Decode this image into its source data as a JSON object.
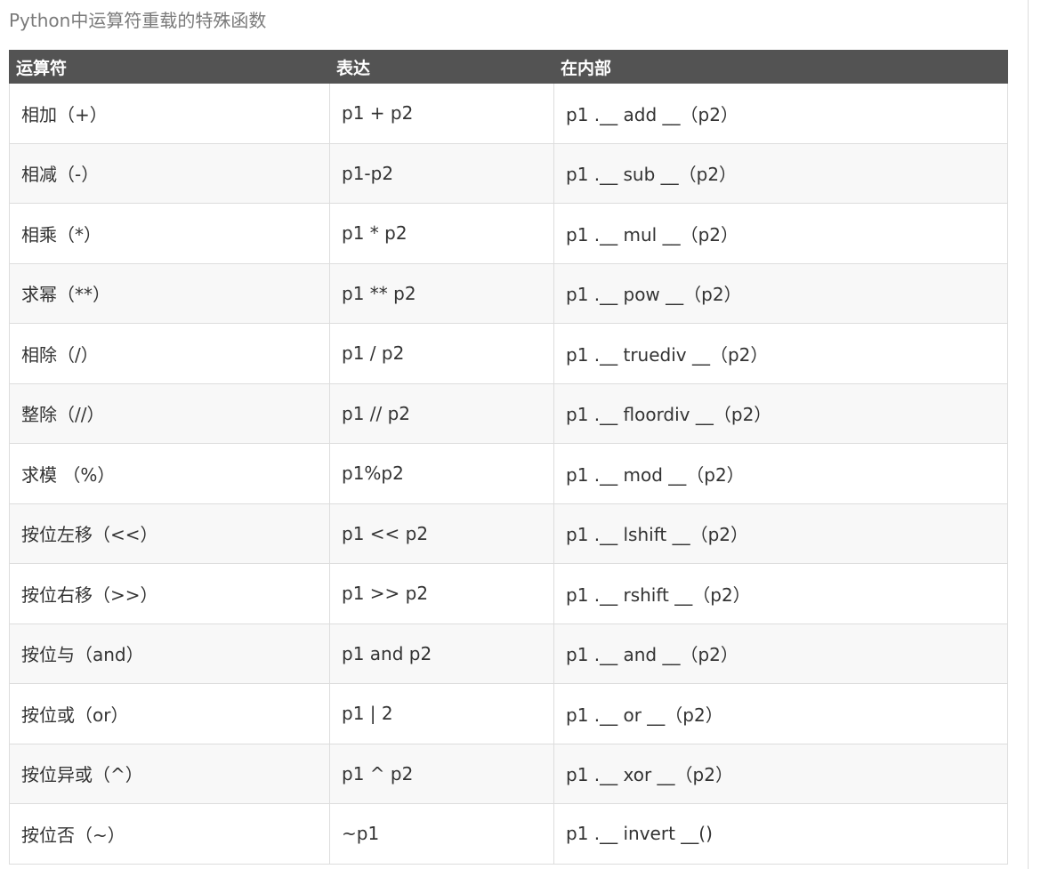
{
  "caption": "Python中运算符重载的特殊函数",
  "table": {
    "headers": [
      "运算符",
      "表达",
      "在内部"
    ],
    "rows": [
      [
        "相加（+）",
        "p1 + p2",
        "p1 .__ add __（p2）"
      ],
      [
        "相减（-）",
        "p1-p2",
        "p1 .__ sub __（p2）"
      ],
      [
        "相乘（*）",
        "p1 * p2",
        "p1 .__ mul __（p2）"
      ],
      [
        "求幂（**）",
        "p1 ** p2",
        "p1 .__ pow __（p2）"
      ],
      [
        "相除（/）",
        "p1 / p2",
        "p1 .__ truediv __（p2）"
      ],
      [
        "整除（//）",
        "p1 // p2",
        "p1 .__ floordiv __（p2）"
      ],
      [
        "求模 （%）",
        "p1%p2",
        "p1 .__ mod __（p2）"
      ],
      [
        "按位左移（<<）",
        "p1 << p2",
        "p1 .__ lshift __（p2）"
      ],
      [
        "按位右移（>>）",
        "p1 >> p2",
        "p1 .__ rshift __（p2）"
      ],
      [
        "按位与（and）",
        "p1 and p2",
        "p1 .__ and __（p2）"
      ],
      [
        "按位或（or）",
        "p1 | 2",
        "p1 .__ or __（p2）"
      ],
      [
        "按位异或（^）",
        "p1 ^ p2",
        "p1 .__ xor __（p2）"
      ],
      [
        "按位否（~）",
        "~p1",
        "p1 .__ invert __()"
      ]
    ]
  }
}
